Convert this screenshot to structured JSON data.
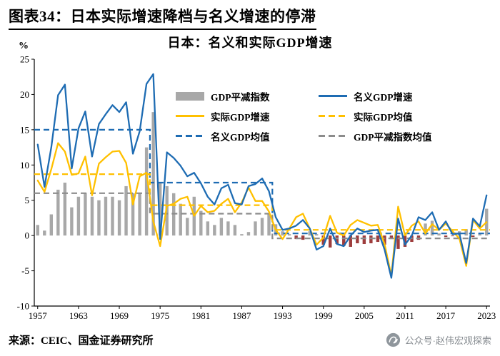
{
  "header": {
    "title": "图表34：日本实际增速降档与名义增速的停滞"
  },
  "footer": {
    "source": "来源：CEIC、国金证券研究所",
    "watermark": "公众号·赵伟宏观探索"
  },
  "chart_data": {
    "type": "combo",
    "title": "日本：名义和实际GDP增速",
    "ylabel": "%",
    "ylim": [
      -10,
      25
    ],
    "ytick_step": 5,
    "grid": false,
    "legend_position": "inside-top",
    "colors": {
      "nominal_blue": "#1E6CB3",
      "real_yellow": "#FFC000",
      "deflator_gray": "#A8A8A8",
      "deflator_negative_red": "#9E3D3D",
      "deflator_mean_gray": "#8C8C8C",
      "axis_black": "#000000"
    },
    "years": [
      1957,
      1958,
      1959,
      1960,
      1961,
      1962,
      1963,
      1964,
      1965,
      1966,
      1967,
      1968,
      1969,
      1970,
      1971,
      1972,
      1973,
      1974,
      1975,
      1976,
      1977,
      1978,
      1979,
      1980,
      1981,
      1982,
      1983,
      1984,
      1985,
      1986,
      1987,
      1988,
      1989,
      1990,
      1991,
      1992,
      1993,
      1994,
      1995,
      1996,
      1997,
      1998,
      1999,
      2000,
      2001,
      2002,
      2003,
      2004,
      2005,
      2006,
      2007,
      2008,
      2009,
      2010,
      2011,
      2012,
      2013,
      2014,
      2015,
      2016,
      2017,
      2018,
      2019,
      2020,
      2021,
      2022,
      2023
    ],
    "xtick_years": [
      1957,
      1963,
      1969,
      1975,
      1981,
      1987,
      1993,
      1999,
      2005,
      2011,
      2017,
      2023
    ],
    "series": [
      {
        "name": "GDP平减指数",
        "type": "bar",
        "color_pos": "#A8A8A8",
        "color_neg": "#9E3D3D",
        "values": [
          1.5,
          0.7,
          3.0,
          6.5,
          7.5,
          4.0,
          5.5,
          6.0,
          5.5,
          5.0,
          5.5,
          5.5,
          5.0,
          7.0,
          6.0,
          6.0,
          12.5,
          17.5,
          7.5,
          7.0,
          6.0,
          4.5,
          2.5,
          5.5,
          3.5,
          2.0,
          1.5,
          2.5,
          2.0,
          1.5,
          0.2,
          0.5,
          2.0,
          2.5,
          3.0,
          1.6,
          0.6,
          0.2,
          -0.5,
          -0.6,
          0.6,
          0.2,
          -1.3,
          -1.7,
          -1.2,
          -1.5,
          -1.6,
          -1.1,
          -1.2,
          -1.1,
          -0.9,
          -1.3,
          -0.5,
          -1.9,
          -1.6,
          -0.9,
          -0.6,
          1.7,
          2.1,
          0.3,
          -0.2,
          -0.1,
          0.6,
          0.9,
          -0.2,
          0.3,
          3.8
        ]
      },
      {
        "name": "实际GDP增速",
        "type": "line",
        "color": "#FFC000",
        "values": [
          7.8,
          6.2,
          9.4,
          13.1,
          11.9,
          8.6,
          8.8,
          11.2,
          5.7,
          10.2,
          11.1,
          11.9,
          12.0,
          10.3,
          4.4,
          8.4,
          8.9,
          2.0,
          -1.5,
          4.2,
          4.5,
          5.2,
          5.5,
          2.8,
          4.2,
          3.3,
          3.5,
          4.5,
          5.2,
          3.3,
          4.7,
          6.8,
          4.9,
          4.9,
          3.4,
          0.8,
          -0.5,
          1.0,
          2.6,
          3.1,
          1.0,
          -1.3,
          -0.3,
          2.8,
          0.4,
          0.0,
          1.5,
          2.2,
          1.8,
          1.4,
          1.5,
          -1.2,
          -5.7,
          4.1,
          0.0,
          1.4,
          2.0,
          0.3,
          1.6,
          0.8,
          1.7,
          0.6,
          -0.4,
          -4.3,
          2.2,
          1.0,
          1.9
        ]
      },
      {
        "name": "名义GDP增速",
        "type": "line",
        "color": "#1E6CB3",
        "values": [
          12.9,
          6.9,
          12.5,
          19.9,
          21.4,
          9.5,
          15.2,
          17.6,
          11.2,
          15.8,
          17.2,
          18.5,
          17.5,
          18.9,
          11.6,
          14.8,
          21.5,
          22.9,
          -0.5,
          11.8,
          11.0,
          9.9,
          8.4,
          8.9,
          7.4,
          5.5,
          4.4,
          6.7,
          7.2,
          4.6,
          4.4,
          7.0,
          7.3,
          8.1,
          6.3,
          2.6,
          0.8,
          1.0,
          1.4,
          2.2,
          1.0,
          -2.0,
          -1.5,
          1.0,
          -1.2,
          -1.5,
          0.0,
          1.0,
          0.5,
          0.7,
          0.8,
          -2.0,
          -6.0,
          2.4,
          -1.3,
          0.0,
          2.6,
          2.2,
          3.3,
          0.8,
          2.0,
          0.2,
          0.3,
          -3.9,
          2.4,
          1.3,
          5.7
        ]
      }
    ],
    "means": [
      {
        "name": "名义GDP均值",
        "color": "#1E6CB3",
        "segments": [
          {
            "from": 1957,
            "to": 1973,
            "value": 15.0
          },
          {
            "from": 1974,
            "to": 1991,
            "value": 7.5
          },
          {
            "from": 1992,
            "to": 2023,
            "value": 0.3
          }
        ]
      },
      {
        "name": "实际GDP均值",
        "color": "#FFC000",
        "segments": [
          {
            "from": 1957,
            "to": 1973,
            "value": 8.7
          },
          {
            "from": 1974,
            "to": 1991,
            "value": 4.3
          },
          {
            "from": 1992,
            "to": 2023,
            "value": 0.8
          }
        ]
      },
      {
        "name": "GDP平减指数均值",
        "color": "#8C8C8C",
        "segments": [
          {
            "from": 1957,
            "to": 1973,
            "value": 6.0
          },
          {
            "from": 1974,
            "to": 1991,
            "value": 3.1
          },
          {
            "from": 1992,
            "to": 2023,
            "value": -0.4
          }
        ]
      }
    ],
    "legend": {
      "items": [
        {
          "label": "GDP平减指数",
          "swatch": "bar",
          "color": "#A8A8A8"
        },
        {
          "label": "名义GDP增速",
          "swatch": "line",
          "color": "#1E6CB3"
        },
        {
          "label": "实际GDP增速",
          "swatch": "line",
          "color": "#FFC000"
        },
        {
          "label": "实际GDP均值",
          "swatch": "dash",
          "color": "#FFC000"
        },
        {
          "label": "名义GDP均值",
          "swatch": "dash",
          "color": "#1E6CB3"
        },
        {
          "label": "GDP平减指数均值",
          "swatch": "dash",
          "color": "#8C8C8C"
        }
      ]
    }
  }
}
